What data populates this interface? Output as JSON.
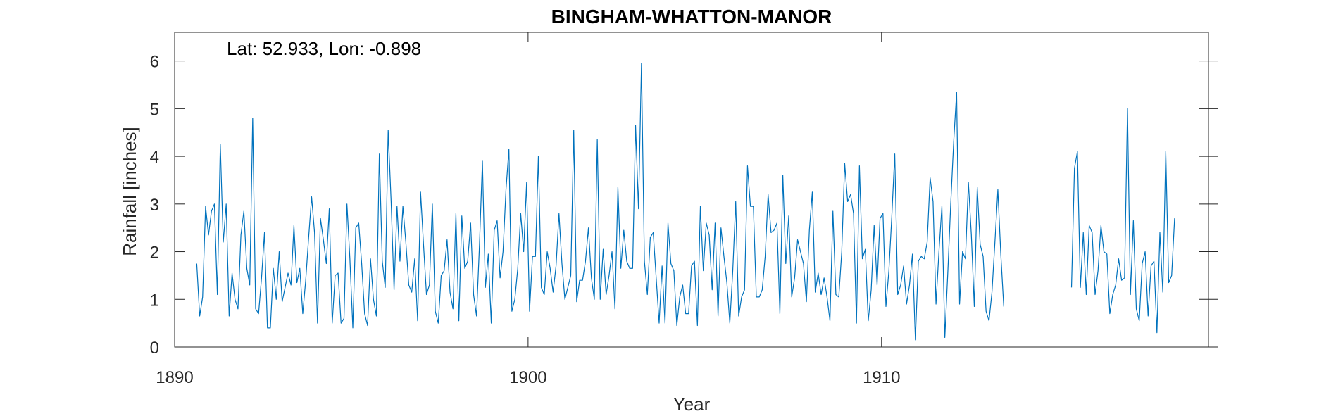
{
  "chart_data": {
    "type": "line",
    "title": "BINGHAM-WHATTON-MANOR",
    "annotation": "Lat: 52.933, Lon: -0.898",
    "xlabel": "Year",
    "ylabel": "Rainfall [inches]",
    "xlim": [
      1890,
      1919.25
    ],
    "ylim": [
      0,
      6.6
    ],
    "x_ticks": [
      1890,
      1900,
      1910
    ],
    "y_ticks": [
      0,
      1,
      2,
      3,
      4,
      5,
      6
    ],
    "grid": false,
    "line_color": "#0072bd",
    "series": [
      {
        "start_year": 1890.625,
        "step": 0.08333,
        "segments": [
          {
            "start": 1890.625,
            "values": [
              1.75,
              0.65,
              1.05,
              2.95,
              2.35,
              2.85,
              3.0,
              1.1,
              4.25,
              2.2,
              3.0,
              0.65,
              1.55,
              1.0,
              0.8,
              2.35,
              2.85,
              1.65,
              1.3,
              4.8,
              0.8,
              0.7,
              1.45,
              2.4,
              0.4,
              0.4,
              1.65,
              1.0,
              2.0,
              0.95,
              1.25,
              1.55,
              1.3,
              2.55,
              1.35,
              1.65,
              0.7,
              1.4,
              2.3,
              3.15,
              2.4,
              0.5,
              2.7,
              2.25,
              1.75,
              2.9,
              0.5,
              1.5,
              1.55,
              0.5,
              0.6,
              3.0,
              1.85,
              0.4,
              2.5,
              2.6,
              1.75,
              0.7,
              0.45,
              1.85,
              1.0,
              0.65,
              4.05,
              1.8,
              1.25,
              4.55,
              3.05,
              1.2,
              2.95,
              1.8,
              2.95,
              2.2,
              1.3,
              1.15,
              1.85,
              0.55,
              3.25,
              2.15,
              1.1,
              1.3,
              3.0,
              0.75,
              0.5,
              1.5,
              1.6,
              2.25,
              1.15,
              0.8,
              2.8,
              0.55,
              2.75,
              1.65,
              1.8,
              2.6,
              1.1,
              0.65,
              2.15,
              3.9,
              1.25,
              1.95,
              0.5,
              2.45,
              2.65,
              1.45,
              2.0,
              3.3,
              4.15,
              0.75,
              1.0,
              1.65,
              2.8,
              2.0,
              3.45,
              0.75,
              1.9,
              1.9,
              4.0,
              1.25,
              1.1,
              2.0,
              1.65,
              1.15,
              1.7,
              2.8,
              1.75,
              1.0,
              1.25,
              1.5,
              4.55,
              0.95,
              1.4,
              1.4,
              1.8,
              2.5,
              1.45,
              1.0,
              4.35,
              1.0,
              2.05,
              1.1,
              1.5,
              2.0,
              0.8,
              3.35,
              1.65,
              2.45,
              1.8,
              1.65,
              1.65,
              4.65,
              2.9,
              5.95,
              1.8,
              1.1,
              2.3,
              2.4,
              1.45,
              0.5,
              1.7,
              0.5,
              2.6,
              1.75,
              1.6,
              0.45,
              1.05,
              1.3,
              0.7,
              0.7,
              1.7,
              1.8,
              0.45,
              2.95,
              1.6,
              2.6,
              2.35,
              1.2,
              2.6,
              0.65,
              2.5,
              1.9,
              1.35,
              0.5,
              1.6,
              3.05,
              0.65,
              1.05,
              1.2,
              3.8,
              2.95,
              2.95,
              1.05,
              1.05,
              1.2,
              1.9,
              3.2,
              2.4,
              2.45,
              2.6,
              0.7,
              3.6,
              1.75,
              2.75,
              1.05,
              1.45,
              2.25,
              2.0,
              1.75,
              0.95,
              2.45,
              3.25,
              1.15,
              1.55,
              1.1,
              1.45,
              1.05,
              0.55,
              2.85,
              1.1,
              1.05,
              2.0,
              3.85,
              3.05,
              3.2,
              2.8,
              0.5,
              3.8,
              1.85,
              2.05,
              0.55,
              1.2,
              2.55,
              1.3,
              2.7,
              2.8,
              0.85,
              1.6,
              2.75,
              4.05,
              1.1,
              1.3,
              1.7,
              0.9,
              1.3,
              1.95,
              0.15,
              1.8,
              1.9,
              1.85,
              2.2,
              3.55,
              3.05,
              0.9,
              2.0,
              2.95,
              0.2,
              1.55,
              3.0,
              4.3,
              5.35,
              0.9,
              2.0,
              1.85,
              3.45,
              2.35,
              0.85,
              3.35,
              2.15,
              1.9,
              0.75,
              0.55,
              1.15,
              2.2,
              3.3,
              1.95,
              0.85
            ]
          },
          {
            "start": 1915.375,
            "values": [
              1.25,
              3.75,
              4.1,
              1.25,
              2.4,
              1.1,
              2.55,
              2.4,
              1.1,
              1.6,
              2.55,
              2.0,
              1.95,
              0.7,
              1.1,
              1.3,
              1.85,
              1.4,
              1.45,
              5.0,
              1.1,
              2.65,
              0.8,
              0.55,
              1.75,
              2.0,
              0.65,
              1.7,
              1.8,
              0.3,
              2.4,
              1.15,
              4.1,
              1.35,
              1.5,
              2.7
            ]
          }
        ]
      }
    ]
  }
}
